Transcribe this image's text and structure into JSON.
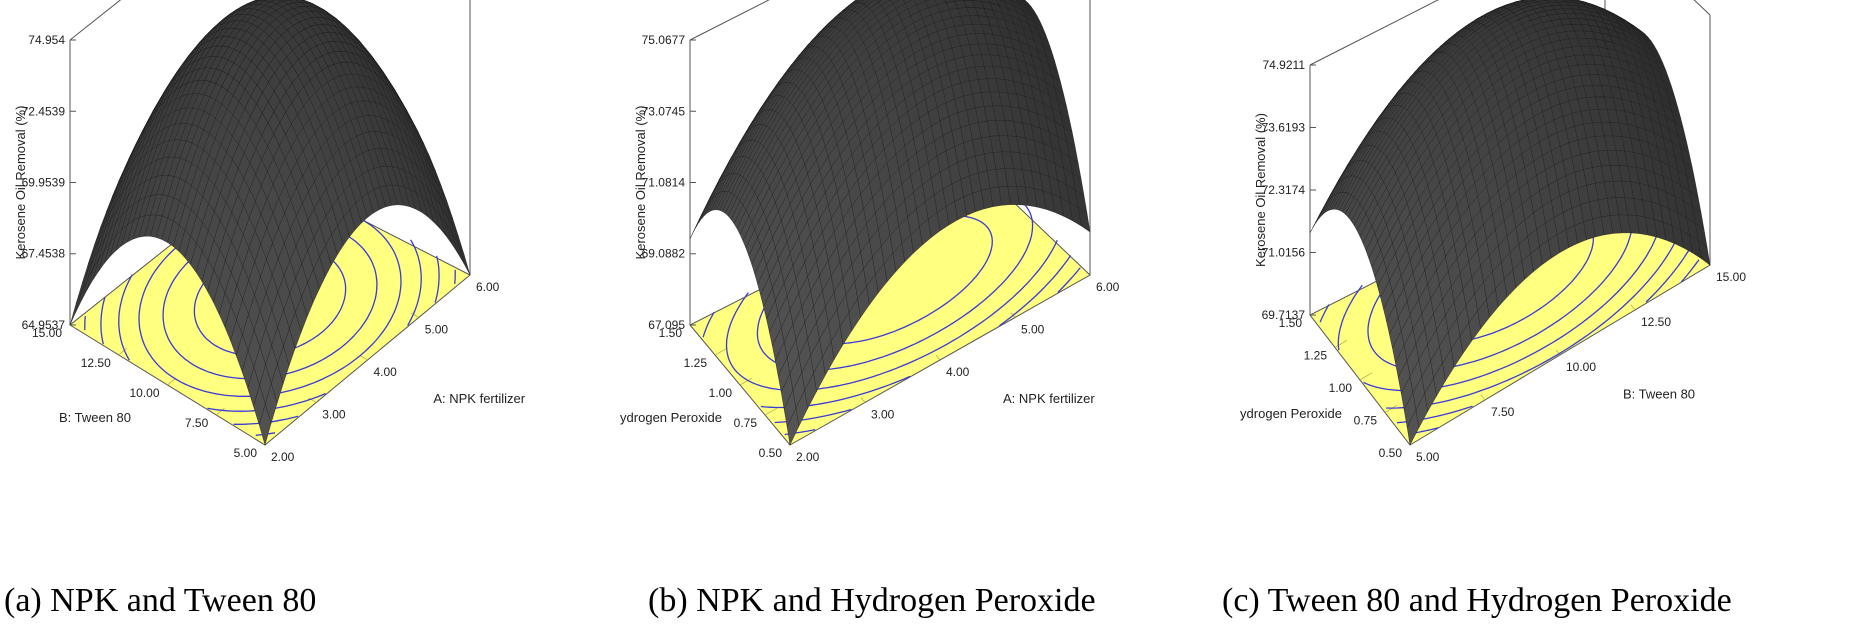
{
  "chart_data": [
    {
      "type": "surface3d",
      "caption": "(a) NPK and Tween 80",
      "xlabel": "A: NPK fertilizer",
      "ylabel": "B: Tween 80",
      "zlabel": "Kerosene Oil Removal (%)",
      "x_ticks": [
        "2.00",
        "3.00",
        "4.00",
        "5.00",
        "6.00"
      ],
      "y_ticks": [
        "5.00",
        "7.50",
        "10.00",
        "12.50",
        "15.00"
      ],
      "z_ticks": [
        "64.9537",
        "67.4538",
        "69.9539",
        "72.4539",
        "74.954"
      ],
      "xlim": [
        2,
        6
      ],
      "ylim": [
        5,
        15
      ],
      "zlim": [
        64.9537,
        74.954
      ],
      "peak": {
        "x": 4.0,
        "y": 10.0,
        "z": 74.954
      },
      "surface_color": "#4a4a4a",
      "floor_color": "#ffff80",
      "contour_color": "#3a3ad8"
    },
    {
      "type": "surface3d",
      "caption": "(b) NPK and Hydrogen Peroxide",
      "xlabel": "A: NPK fertilizer",
      "ylabel": "C: Hydrogen Peroxide",
      "zlabel": "Kerosene Oil Removal (%)",
      "x_ticks": [
        "2.00",
        "3.00",
        "4.00",
        "5.00",
        "6.00"
      ],
      "y_ticks": [
        "0.50",
        "0.75",
        "1.00",
        "1.25",
        "1.50"
      ],
      "z_ticks": [
        "67.095",
        "69.0882",
        "71.0814",
        "73.0745",
        "75.0677"
      ],
      "xlim": [
        2,
        6
      ],
      "ylim": [
        0.5,
        1.5
      ],
      "zlim": [
        67.095,
        75.0677
      ],
      "peak": {
        "x": 4.2,
        "y": 1.1,
        "z": 75.0677
      },
      "surface_color": "#4a4a4a",
      "floor_color": "#ffff80",
      "contour_color": "#3a3ad8"
    },
    {
      "type": "surface3d",
      "caption": "(c) Tween 80 and Hydrogen Peroxide",
      "xlabel": "B: Tween 80",
      "ylabel": "C: Hydrogen Peroxide",
      "zlabel": "Kerosene Oil Removal (%)",
      "x_ticks": [
        "5.00",
        "7.50",
        "10.00",
        "12.50",
        "15.00"
      ],
      "y_ticks": [
        "0.50",
        "0.75",
        "1.00",
        "1.25",
        "1.50"
      ],
      "z_ticks": [
        "69.7137",
        "71.0156",
        "72.3174",
        "73.6193",
        "74.9211"
      ],
      "xlim": [
        5,
        15
      ],
      "ylim": [
        0.5,
        1.5
      ],
      "zlim": [
        69.7137,
        74.9211
      ],
      "peak": {
        "x": 10.0,
        "y": 1.1,
        "z": 74.9211
      },
      "surface_color": "#4a4a4a",
      "floor_color": "#ffff80",
      "contour_color": "#3a3ad8"
    }
  ]
}
